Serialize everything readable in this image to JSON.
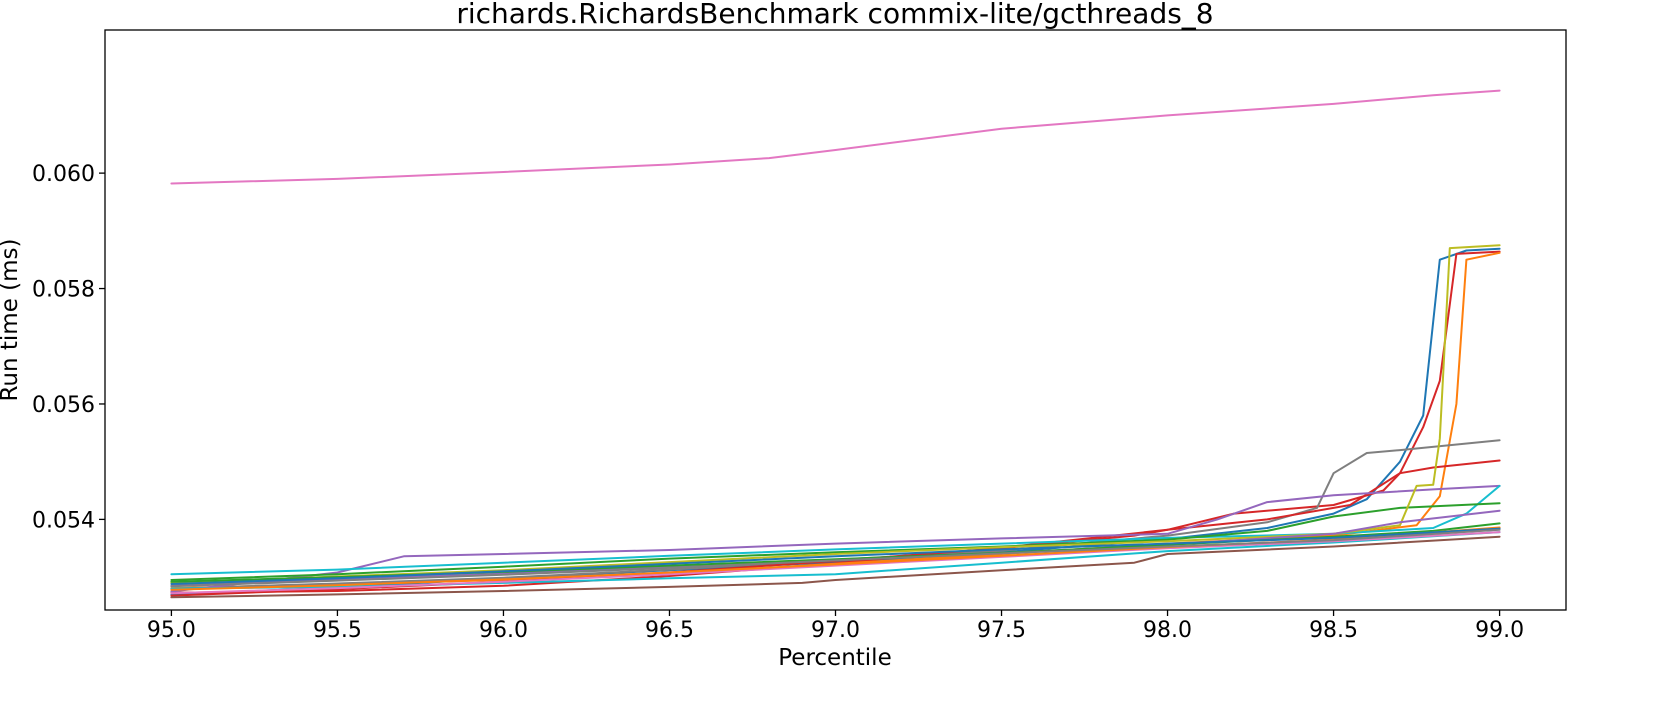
{
  "chart_data": {
    "type": "line",
    "title": "richards.RichardsBenchmark commix-lite/gcthreads_8",
    "xlabel": "Percentile",
    "ylabel": "Run time (ms)",
    "xlim": [
      94.8,
      99.2
    ],
    "ylim": [
      0.05243,
      0.06248
    ],
    "x_ticks": [
      95.0,
      95.5,
      96.0,
      96.5,
      97.0,
      97.5,
      98.0,
      98.5,
      99.0
    ],
    "x_tick_labels": [
      "95.0",
      "95.5",
      "96.0",
      "96.5",
      "97.0",
      "97.5",
      "98.0",
      "98.5",
      "99.0"
    ],
    "y_ticks": [
      0.054,
      0.056,
      0.058,
      0.06
    ],
    "y_tick_labels": [
      "0.054",
      "0.056",
      "0.058",
      "0.060"
    ],
    "grid": false,
    "legend": "none",
    "series": [
      {
        "color": "#e377c2",
        "points": [
          [
            95.0,
            0.05982
          ],
          [
            95.5,
            0.0599
          ],
          [
            96.0,
            0.06002
          ],
          [
            96.5,
            0.06015
          ],
          [
            96.8,
            0.06026
          ],
          [
            97.0,
            0.0604
          ],
          [
            97.5,
            0.06077
          ],
          [
            98.0,
            0.061
          ],
          [
            98.5,
            0.0612
          ],
          [
            98.8,
            0.06135
          ],
          [
            99.0,
            0.06143
          ]
        ]
      },
      {
        "color": "#1f77b4",
        "points": [
          [
            95.0,
            0.0527
          ],
          [
            95.5,
            0.05282
          ],
          [
            96.0,
            0.05298
          ],
          [
            96.5,
            0.05312
          ],
          [
            97.0,
            0.05326
          ],
          [
            97.5,
            0.05343
          ],
          [
            98.0,
            0.05366
          ],
          [
            98.3,
            0.05385
          ],
          [
            98.5,
            0.0541
          ],
          [
            98.6,
            0.05435
          ],
          [
            98.7,
            0.055
          ],
          [
            98.77,
            0.0558
          ],
          [
            98.82,
            0.0585
          ],
          [
            98.9,
            0.05866
          ],
          [
            99.0,
            0.05869
          ]
        ]
      },
      {
        "color": "#d62728",
        "points": [
          [
            95.0,
            0.05273
          ],
          [
            95.5,
            0.05276
          ],
          [
            96.0,
            0.05285
          ],
          [
            96.5,
            0.05302
          ],
          [
            97.0,
            0.05324
          ],
          [
            97.5,
            0.05351
          ],
          [
            98.0,
            0.05382
          ],
          [
            98.2,
            0.0541
          ],
          [
            98.5,
            0.05425
          ],
          [
            98.65,
            0.0545
          ],
          [
            98.7,
            0.0548
          ],
          [
            98.77,
            0.0556
          ],
          [
            98.82,
            0.0564
          ],
          [
            98.87,
            0.0586
          ],
          [
            99.0,
            0.05864
          ]
        ]
      },
      {
        "color": "#ff7f0e",
        "points": [
          [
            95.0,
            0.05281
          ],
          [
            95.5,
            0.05288
          ],
          [
            96.0,
            0.05295
          ],
          [
            96.5,
            0.05306
          ],
          [
            97.0,
            0.05323
          ],
          [
            97.5,
            0.0534
          ],
          [
            98.0,
            0.05358
          ],
          [
            98.5,
            0.05372
          ],
          [
            98.75,
            0.0539
          ],
          [
            98.82,
            0.0544
          ],
          [
            98.87,
            0.056
          ],
          [
            98.9,
            0.0585
          ],
          [
            99.0,
            0.05862
          ]
        ]
      },
      {
        "color": "#7f7f7f",
        "points": [
          [
            95.0,
            0.0528
          ],
          [
            95.5,
            0.05289
          ],
          [
            96.0,
            0.05299
          ],
          [
            96.5,
            0.05313
          ],
          [
            97.0,
            0.0533
          ],
          [
            97.5,
            0.05346
          ],
          [
            98.0,
            0.05372
          ],
          [
            98.3,
            0.05395
          ],
          [
            98.45,
            0.0542
          ],
          [
            98.5,
            0.0548
          ],
          [
            98.6,
            0.05515
          ],
          [
            98.7,
            0.0552
          ],
          [
            99.0,
            0.05537
          ]
        ]
      },
      {
        "color": "#d62728",
        "points": [
          [
            95.0,
            0.05268
          ],
          [
            95.5,
            0.05279
          ],
          [
            96.0,
            0.05292
          ],
          [
            96.5,
            0.05308
          ],
          [
            97.0,
            0.05328
          ],
          [
            97.5,
            0.0535
          ],
          [
            97.9,
            0.05372
          ],
          [
            98.0,
            0.05382
          ],
          [
            98.3,
            0.054
          ],
          [
            98.55,
            0.05425
          ],
          [
            98.7,
            0.0548
          ],
          [
            98.8,
            0.0549
          ],
          [
            99.0,
            0.05502
          ]
        ]
      },
      {
        "color": "#9467bd",
        "points": [
          [
            95.0,
            0.05275
          ],
          [
            95.5,
            0.05308
          ],
          [
            95.7,
            0.05336
          ],
          [
            96.0,
            0.0534
          ],
          [
            96.5,
            0.05347
          ],
          [
            97.0,
            0.05358
          ],
          [
            97.5,
            0.05367
          ],
          [
            98.0,
            0.05375
          ],
          [
            98.15,
            0.054
          ],
          [
            98.3,
            0.0543
          ],
          [
            98.5,
            0.05442
          ],
          [
            98.8,
            0.05452
          ],
          [
            99.0,
            0.05458
          ]
        ]
      },
      {
        "color": "#17becf",
        "points": [
          [
            95.0,
            0.05305
          ],
          [
            95.5,
            0.05313
          ],
          [
            96.0,
            0.05325
          ],
          [
            96.5,
            0.05337
          ],
          [
            97.0,
            0.05348
          ],
          [
            97.5,
            0.05358
          ],
          [
            98.0,
            0.05368
          ],
          [
            98.5,
            0.05375
          ],
          [
            98.8,
            0.05385
          ],
          [
            98.9,
            0.0541
          ],
          [
            99.0,
            0.05458
          ]
        ]
      },
      {
        "color": "#2ca02c",
        "points": [
          [
            95.0,
            0.05295
          ],
          [
            95.5,
            0.05305
          ],
          [
            96.0,
            0.05318
          ],
          [
            96.5,
            0.05332
          ],
          [
            97.0,
            0.05343
          ],
          [
            97.5,
            0.05353
          ],
          [
            98.0,
            0.05365
          ],
          [
            98.3,
            0.0538
          ],
          [
            98.5,
            0.05405
          ],
          [
            98.7,
            0.0542
          ],
          [
            99.0,
            0.05428
          ]
        ]
      },
      {
        "color": "#bcbd22",
        "points": [
          [
            95.0,
            0.0529
          ],
          [
            95.5,
            0.05301
          ],
          [
            96.0,
            0.05312
          ],
          [
            96.5,
            0.05326
          ],
          [
            97.0,
            0.0534
          ],
          [
            97.5,
            0.05352
          ],
          [
            98.0,
            0.05362
          ],
          [
            98.5,
            0.05375
          ],
          [
            98.7,
            0.0539
          ],
          [
            98.75,
            0.05458
          ],
          [
            98.8,
            0.0546
          ],
          [
            98.82,
            0.0554
          ],
          [
            98.85,
            0.0587
          ],
          [
            99.0,
            0.05875
          ]
        ]
      },
      {
        "color": "#9467bd",
        "points": [
          [
            95.0,
            0.05285
          ],
          [
            95.5,
            0.05296
          ],
          [
            96.0,
            0.05306
          ],
          [
            96.5,
            0.05318
          ],
          [
            97.0,
            0.0533
          ],
          [
            97.5,
            0.05342
          ],
          [
            98.0,
            0.05356
          ],
          [
            98.5,
            0.05375
          ],
          [
            98.7,
            0.05395
          ],
          [
            99.0,
            0.05415
          ]
        ]
      },
      {
        "color": "#2ca02c",
        "points": [
          [
            95.0,
            0.05292
          ],
          [
            95.5,
            0.053
          ],
          [
            96.0,
            0.05309
          ],
          [
            96.5,
            0.0532
          ],
          [
            97.0,
            0.05331
          ],
          [
            97.5,
            0.05342
          ],
          [
            98.0,
            0.05356
          ],
          [
            98.5,
            0.0537
          ],
          [
            98.8,
            0.0538
          ],
          [
            99.0,
            0.05393
          ]
        ]
      },
      {
        "color": "#8c564b",
        "points": [
          [
            95.0,
            0.05265
          ],
          [
            95.5,
            0.0527
          ],
          [
            96.0,
            0.05276
          ],
          [
            96.5,
            0.05283
          ],
          [
            96.9,
            0.0529
          ],
          [
            97.0,
            0.05295
          ],
          [
            97.5,
            0.05312
          ],
          [
            97.9,
            0.05325
          ],
          [
            98.0,
            0.0534
          ],
          [
            98.5,
            0.05353
          ],
          [
            99.0,
            0.0537
          ]
        ]
      },
      {
        "color": "#17becf",
        "points": [
          [
            95.0,
            0.0528
          ],
          [
            95.5,
            0.05283
          ],
          [
            96.0,
            0.0529
          ],
          [
            96.5,
            0.05298
          ],
          [
            97.0,
            0.05305
          ],
          [
            97.5,
            0.05325
          ],
          [
            98.0,
            0.05345
          ],
          [
            98.5,
            0.0536
          ],
          [
            99.0,
            0.05378
          ]
        ]
      },
      {
        "color": "#e377c2",
        "points": [
          [
            95.0,
            0.05272
          ],
          [
            95.5,
            0.05281
          ],
          [
            96.0,
            0.05292
          ],
          [
            96.5,
            0.05305
          ],
          [
            97.0,
            0.0532
          ],
          [
            97.5,
            0.05335
          ],
          [
            98.0,
            0.0535
          ],
          [
            98.5,
            0.05362
          ],
          [
            99.0,
            0.05378
          ]
        ]
      },
      {
        "color": "#ff7f0e",
        "points": [
          [
            95.0,
            0.05278
          ],
          [
            95.5,
            0.05286
          ],
          [
            96.0,
            0.05296
          ],
          [
            96.5,
            0.05308
          ],
          [
            97.0,
            0.05322
          ],
          [
            97.5,
            0.05337
          ],
          [
            98.0,
            0.05352
          ],
          [
            98.5,
            0.05365
          ],
          [
            99.0,
            0.05386
          ]
        ]
      },
      {
        "color": "#1f77b4",
        "points": [
          [
            95.0,
            0.05288
          ],
          [
            95.5,
            0.05298
          ],
          [
            96.0,
            0.0531
          ],
          [
            96.5,
            0.05323
          ],
          [
            97.0,
            0.05336
          ],
          [
            97.5,
            0.05348
          ],
          [
            98.0,
            0.05358
          ],
          [
            98.5,
            0.05368
          ],
          [
            99.0,
            0.05384
          ]
        ]
      },
      {
        "color": "#7f7f7f",
        "points": [
          [
            95.0,
            0.05284
          ],
          [
            95.5,
            0.05294
          ],
          [
            96.0,
            0.05304
          ],
          [
            96.5,
            0.05316
          ],
          [
            97.0,
            0.05329
          ],
          [
            97.5,
            0.05341
          ],
          [
            98.0,
            0.05353
          ],
          [
            98.5,
            0.05364
          ],
          [
            99.0,
            0.05382
          ]
        ]
      }
    ]
  }
}
